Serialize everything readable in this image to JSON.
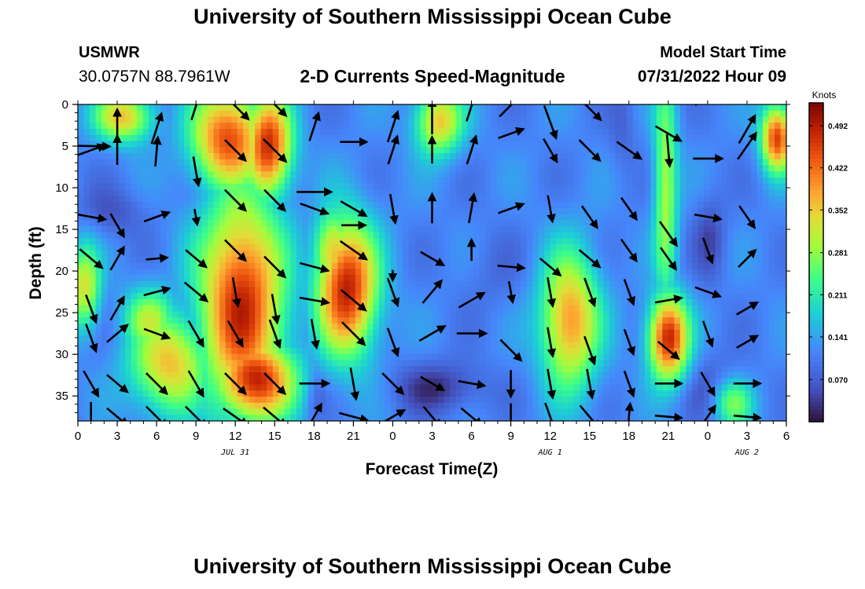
{
  "header": {
    "title": "University of Southern Mississippi Ocean Cube",
    "station_name": "USMWR",
    "station_coords": "30.0757N  88.7961W",
    "plot_title": "2-D Currents Speed-Magnitude",
    "model_label": "Model Start Time",
    "model_time": "07/31/2022 Hour 09"
  },
  "footer": {
    "title": "University of Southern Mississippi Ocean Cube"
  },
  "chart_data": {
    "type": "heatmap",
    "title": "2-D Currents Speed-Magnitude",
    "xlabel": "Forecast Time(Z)",
    "ylabel": "Depth (ft)",
    "x_ticks": [
      "0",
      "3",
      "6",
      "9",
      "12",
      "15",
      "18",
      "21",
      "0",
      "3",
      "6",
      "9",
      "12",
      "15",
      "18",
      "21",
      "0",
      "3",
      "6"
    ],
    "x_range_hours": [
      0,
      54
    ],
    "date_labels": [
      {
        "text": "JUL 31",
        "hour": 12
      },
      {
        "text": "AUG 1",
        "hour": 36
      },
      {
        "text": "AUG 2",
        "hour": 51
      }
    ],
    "y_ticks": [
      0,
      5,
      10,
      15,
      20,
      25,
      30,
      35
    ],
    "y_range_ft": [
      0,
      38
    ],
    "y_inverted": true,
    "colorbar": {
      "label": "Knots",
      "ticks": [
        "0.492",
        "0.422",
        "0.352",
        "0.281",
        "0.211",
        "0.141",
        "0.070"
      ],
      "ticks_values": [
        0.492,
        0.422,
        0.352,
        0.281,
        0.211,
        0.141,
        0.07
      ],
      "range": [
        0.0,
        0.53
      ],
      "colormap": "turbo"
    },
    "speed_blobs": [
      {
        "t": 12.5,
        "d": 24,
        "rt": 3.2,
        "rd": 13,
        "v": 0.48
      },
      {
        "t": 11.5,
        "d": 4,
        "rt": 2.8,
        "rd": 6,
        "v": 0.45
      },
      {
        "t": 14.5,
        "d": 5,
        "rt": 1.8,
        "rd": 6,
        "v": 0.48
      },
      {
        "t": 13.5,
        "d": 33,
        "rt": 3.0,
        "rd": 5,
        "v": 0.49
      },
      {
        "t": 20.5,
        "d": 22,
        "rt": 2.3,
        "rd": 8,
        "v": 0.49
      },
      {
        "t": 19.5,
        "d": 18,
        "rt": 1.5,
        "rd": 5,
        "v": 0.38
      },
      {
        "t": 7.0,
        "d": 31,
        "rt": 3.0,
        "rd": 6,
        "v": 0.36
      },
      {
        "t": 5.5,
        "d": 26,
        "rt": 2.0,
        "rd": 4,
        "v": 0.3
      },
      {
        "t": 0.5,
        "d": 22,
        "rt": 1.2,
        "rd": 5,
        "v": 0.33
      },
      {
        "t": 3.5,
        "d": 1.5,
        "rt": 2.2,
        "rd": 3,
        "v": 0.36
      },
      {
        "t": 27.5,
        "d": 2,
        "rt": 1.8,
        "rd": 4,
        "v": 0.36
      },
      {
        "t": 37.5,
        "d": 26,
        "rt": 2.2,
        "rd": 8,
        "v": 0.4
      },
      {
        "t": 45.0,
        "d": 28,
        "rt": 1.5,
        "rd": 5,
        "v": 0.49
      },
      {
        "t": 44.8,
        "d": 10,
        "rt": 0.9,
        "rd": 14,
        "v": 0.3
      },
      {
        "t": 53.3,
        "d": 4,
        "rt": 1.2,
        "rd": 4,
        "v": 0.46
      },
      {
        "t": 50.0,
        "d": 36,
        "rt": 1.5,
        "rd": 3,
        "v": 0.25
      }
    ],
    "low_blobs": [
      {
        "t": 2.5,
        "d": 13,
        "rt": 2.5,
        "rd": 3,
        "v": 0.06
      },
      {
        "t": 27.5,
        "d": 34,
        "rt": 3.5,
        "rd": 3,
        "v": 0.03
      },
      {
        "t": 18.0,
        "d": 35,
        "rt": 0.8,
        "rd": 3,
        "v": 0.06
      },
      {
        "t": 41.5,
        "d": 3,
        "rt": 1.0,
        "rd": 6,
        "v": 0.08
      },
      {
        "t": 48.2,
        "d": 16,
        "rt": 1.2,
        "rd": 5,
        "v": 0.05
      },
      {
        "t": 31.5,
        "d": 20,
        "rt": 2.5,
        "rd": 5,
        "v": 0.09
      },
      {
        "t": 48.5,
        "d": 34,
        "rt": 2.5,
        "rd": 4,
        "v": 0.07
      }
    ],
    "vectors": [
      [
        1,
        4.5,
        -1,
        -1,
        1.4
      ],
      [
        3,
        0,
        90,
        1,
        1.2
      ],
      [
        6,
        0,
        72,
        1.4,
        1.2
      ],
      [
        9,
        0,
        72,
        -1.3,
        1.1
      ],
      [
        12,
        0,
        -45,
        -1.3,
        1.4
      ],
      [
        15,
        0,
        -45,
        -1.5,
        1.2
      ],
      [
        18,
        0,
        72,
        1.2,
        1.1
      ],
      [
        21,
        0,
        0,
        3,
        1.0
      ],
      [
        24,
        0,
        72,
        1.2,
        1.2
      ],
      [
        27,
        0,
        90,
        0,
        1.3
      ],
      [
        30,
        0,
        72,
        -1.3,
        1.2
      ],
      [
        33,
        0,
        45,
        -1.4,
        1.2
      ],
      [
        36,
        0,
        -70,
        0.6,
        1.3
      ],
      [
        39,
        0,
        -45,
        -1,
        1.2
      ],
      [
        42,
        0,
        0,
        -3,
        1.0
      ],
      [
        45,
        0,
        -30,
        2,
        1.1
      ],
      [
        48,
        0,
        20,
        -2,
        1.0
      ],
      [
        51,
        0,
        60,
        1.5,
        1.2
      ],
      [
        1,
        5,
        20,
        -1,
        1.1
      ],
      [
        3,
        5,
        90,
        -1,
        1.1
      ],
      [
        6,
        5,
        85,
        -0.8,
        1.1
      ],
      [
        9,
        5,
        -80,
        1.5,
        1.1
      ],
      [
        12,
        5,
        -45,
        -1,
        1.1
      ],
      [
        15,
        5,
        -45,
        -1,
        1.2
      ],
      [
        18,
        5,
        0,
        4,
        1.3
      ],
      [
        21,
        5,
        0,
        8,
        0.9
      ],
      [
        24,
        5,
        72,
        -1,
        1.1
      ],
      [
        27,
        5,
        90,
        -1,
        1.0
      ],
      [
        30,
        5,
        72,
        -1,
        1.1
      ],
      [
        33,
        5,
        20,
        -3,
        1.0
      ],
      [
        36,
        5,
        -60,
        -1,
        1.0
      ],
      [
        39,
        5,
        -45,
        -1,
        1.1
      ],
      [
        42,
        5,
        -35,
        -1,
        1.1
      ],
      [
        45,
        5,
        -85,
        -1,
        1.2
      ],
      [
        48,
        5,
        0,
        0,
        1.1
      ],
      [
        51,
        5,
        55,
        -1.5,
        1.2
      ],
      [
        1,
        12,
        -10,
        0,
        1.1
      ],
      [
        3,
        12,
        -60,
        1,
        1.0
      ],
      [
        6,
        12,
        20,
        0,
        1.0
      ],
      [
        9,
        12,
        -80,
        0,
        0.6
      ],
      [
        12,
        12,
        -45,
        -2,
        1.1
      ],
      [
        15,
        12,
        -45,
        -2,
        1.1
      ],
      [
        18,
        12,
        -20,
        -1,
        1.1
      ],
      [
        21,
        12,
        -30,
        -1,
        1.1
      ],
      [
        24,
        12,
        -80,
        -1,
        1.1
      ],
      [
        27,
        12,
        90,
        -1,
        1.1
      ],
      [
        30,
        12,
        80,
        -1,
        1.1
      ],
      [
        33,
        12,
        20,
        -1,
        1.0
      ],
      [
        36,
        12,
        -80,
        -1,
        1.0
      ],
      [
        39,
        12,
        -55,
        0,
        1.0
      ],
      [
        42,
        12,
        -55,
        -1,
        1.0
      ],
      [
        45,
        12,
        -55,
        2,
        1.1
      ],
      [
        48,
        12,
        -10,
        0,
        1.0
      ],
      [
        51,
        12,
        -55,
        0,
        1.0
      ],
      [
        1,
        17,
        -40,
        0,
        1.1
      ],
      [
        3,
        17,
        60,
        0,
        1.0
      ],
      [
        6,
        17,
        5,
        0,
        0.8
      ],
      [
        9,
        17,
        -40,
        0,
        1.0
      ],
      [
        12,
        17,
        -45,
        -1,
        1.1
      ],
      [
        15,
        17,
        -45,
        1,
        1.1
      ],
      [
        18,
        17,
        -15,
        1,
        1.1
      ],
      [
        21,
        17,
        -35,
        -1,
        1.2
      ],
      [
        24,
        17,
        -90,
        2,
        0.4
      ],
      [
        27,
        17,
        -30,
        0,
        1.0
      ],
      [
        30,
        17,
        90,
        -1,
        0.8
      ],
      [
        33,
        17,
        -5,
        1,
        1.0
      ],
      [
        36,
        17,
        -40,
        1,
        1.0
      ],
      [
        39,
        17,
        -40,
        0,
        1.0
      ],
      [
        42,
        17,
        -55,
        -1,
        1.0
      ],
      [
        45,
        17,
        -55,
        0,
        1.0
      ],
      [
        48,
        17,
        -70,
        -1,
        1.0
      ],
      [
        51,
        17,
        45,
        0,
        0.9
      ],
      [
        1,
        22,
        -70,
        1,
        1.1
      ],
      [
        3,
        22,
        60,
        1,
        1.0
      ],
      [
        6,
        22,
        15,
        -1,
        1.0
      ],
      [
        9,
        22,
        -40,
        -1,
        1.1
      ],
      [
        12,
        22,
        -80,
        -1,
        1.1
      ],
      [
        15,
        22,
        -80,
        1,
        1.1
      ],
      [
        18,
        22,
        -10,
        0,
        1.1
      ],
      [
        21,
        22,
        -40,
        0,
        1.2
      ],
      [
        24,
        22,
        -70,
        -1,
        1.1
      ],
      [
        27,
        22,
        50,
        -1,
        1.1
      ],
      [
        30,
        22,
        30,
        0,
        1.1
      ],
      [
        33,
        22,
        -80,
        -1,
        0.8
      ],
      [
        36,
        22,
        -80,
        -1,
        1.1
      ],
      [
        39,
        22,
        -70,
        -1,
        1.1
      ],
      [
        42,
        22,
        -70,
        -1,
        1.0
      ],
      [
        45,
        22,
        10,
        0,
        1.0
      ],
      [
        48,
        22,
        -20,
        -1,
        1.0
      ],
      [
        51,
        22,
        30,
        1,
        0.9
      ],
      [
        1,
        27,
        -70,
        -0.5,
        1.1
      ],
      [
        3,
        27,
        40,
        -1,
        1.0
      ],
      [
        6,
        27,
        -20,
        -1,
        1.0
      ],
      [
        9,
        27,
        -60,
        -1,
        1.1
      ],
      [
        12,
        27,
        -60,
        -1,
        1.1
      ],
      [
        15,
        27,
        -70,
        -1,
        1.1
      ],
      [
        18,
        27,
        -80,
        -1,
        1.1
      ],
      [
        21,
        27,
        -45,
        -1,
        1.2
      ],
      [
        24,
        27,
        -70,
        0,
        1.1
      ],
      [
        27,
        27,
        30,
        -1,
        1.1
      ],
      [
        30,
        27,
        0,
        -1,
        1.1
      ],
      [
        33,
        27,
        -45,
        1,
        1.1
      ],
      [
        36,
        27,
        -80,
        0,
        1.1
      ],
      [
        39,
        27,
        -70,
        1,
        1.1
      ],
      [
        42,
        27,
        -70,
        0,
        1.0
      ],
      [
        45,
        27,
        -40,
        1,
        1.0
      ],
      [
        48,
        27,
        -70,
        -1,
        1.0
      ],
      [
        51,
        27,
        30,
        0,
        0.9
      ],
      [
        1,
        32,
        -60,
        0,
        1.1
      ],
      [
        3,
        32,
        -40,
        0,
        1.0
      ],
      [
        6,
        32,
        -45,
        0,
        1.1
      ],
      [
        9,
        32,
        -60,
        0,
        1.1
      ],
      [
        12,
        32,
        -45,
        0,
        1.1
      ],
      [
        15,
        32,
        -45,
        0,
        1.1
      ],
      [
        18,
        32,
        0,
        0,
        1.1
      ],
      [
        21,
        32,
        -80,
        0,
        1.2
      ],
      [
        24,
        32,
        -45,
        0,
        1.1
      ],
      [
        27,
        32,
        -30,
        0,
        1.0
      ],
      [
        30,
        32,
        -10,
        0,
        1.0
      ],
      [
        33,
        32,
        -90,
        0,
        1.0
      ],
      [
        36,
        32,
        -80,
        0,
        1.1
      ],
      [
        39,
        32,
        -80,
        0,
        1.1
      ],
      [
        42,
        32,
        -70,
        0,
        1.0
      ],
      [
        45,
        32,
        0,
        0,
        1.0
      ],
      [
        48,
        32,
        -60,
        0,
        1.0
      ],
      [
        51,
        32,
        0,
        0,
        1.0
      ],
      [
        1,
        36,
        -90,
        0,
        1.1
      ],
      [
        3,
        36,
        -40,
        0,
        1.0
      ],
      [
        6,
        36,
        -45,
        0,
        1.1
      ],
      [
        9,
        36,
        -45,
        0,
        1.1
      ],
      [
        12,
        36,
        -35,
        0,
        1.1
      ],
      [
        15,
        36,
        -40,
        0,
        1.1
      ],
      [
        18,
        36,
        60,
        0,
        1.1
      ],
      [
        21,
        36,
        -15,
        0,
        1.1
      ],
      [
        24,
        36,
        30,
        0,
        1.0
      ],
      [
        27,
        36,
        -50,
        0,
        1.0
      ],
      [
        30,
        36,
        -40,
        0,
        1.0
      ],
      [
        33,
        36,
        -90,
        0,
        1.0
      ],
      [
        36,
        36,
        -70,
        0,
        1.1
      ],
      [
        39,
        36,
        -50,
        0,
        1.1
      ],
      [
        42,
        36,
        85,
        0,
        1.0
      ],
      [
        45,
        36,
        -5,
        0,
        1.0
      ],
      [
        48,
        36,
        55,
        0,
        1.0
      ],
      [
        51,
        36,
        -5,
        0,
        1.0
      ]
    ]
  }
}
